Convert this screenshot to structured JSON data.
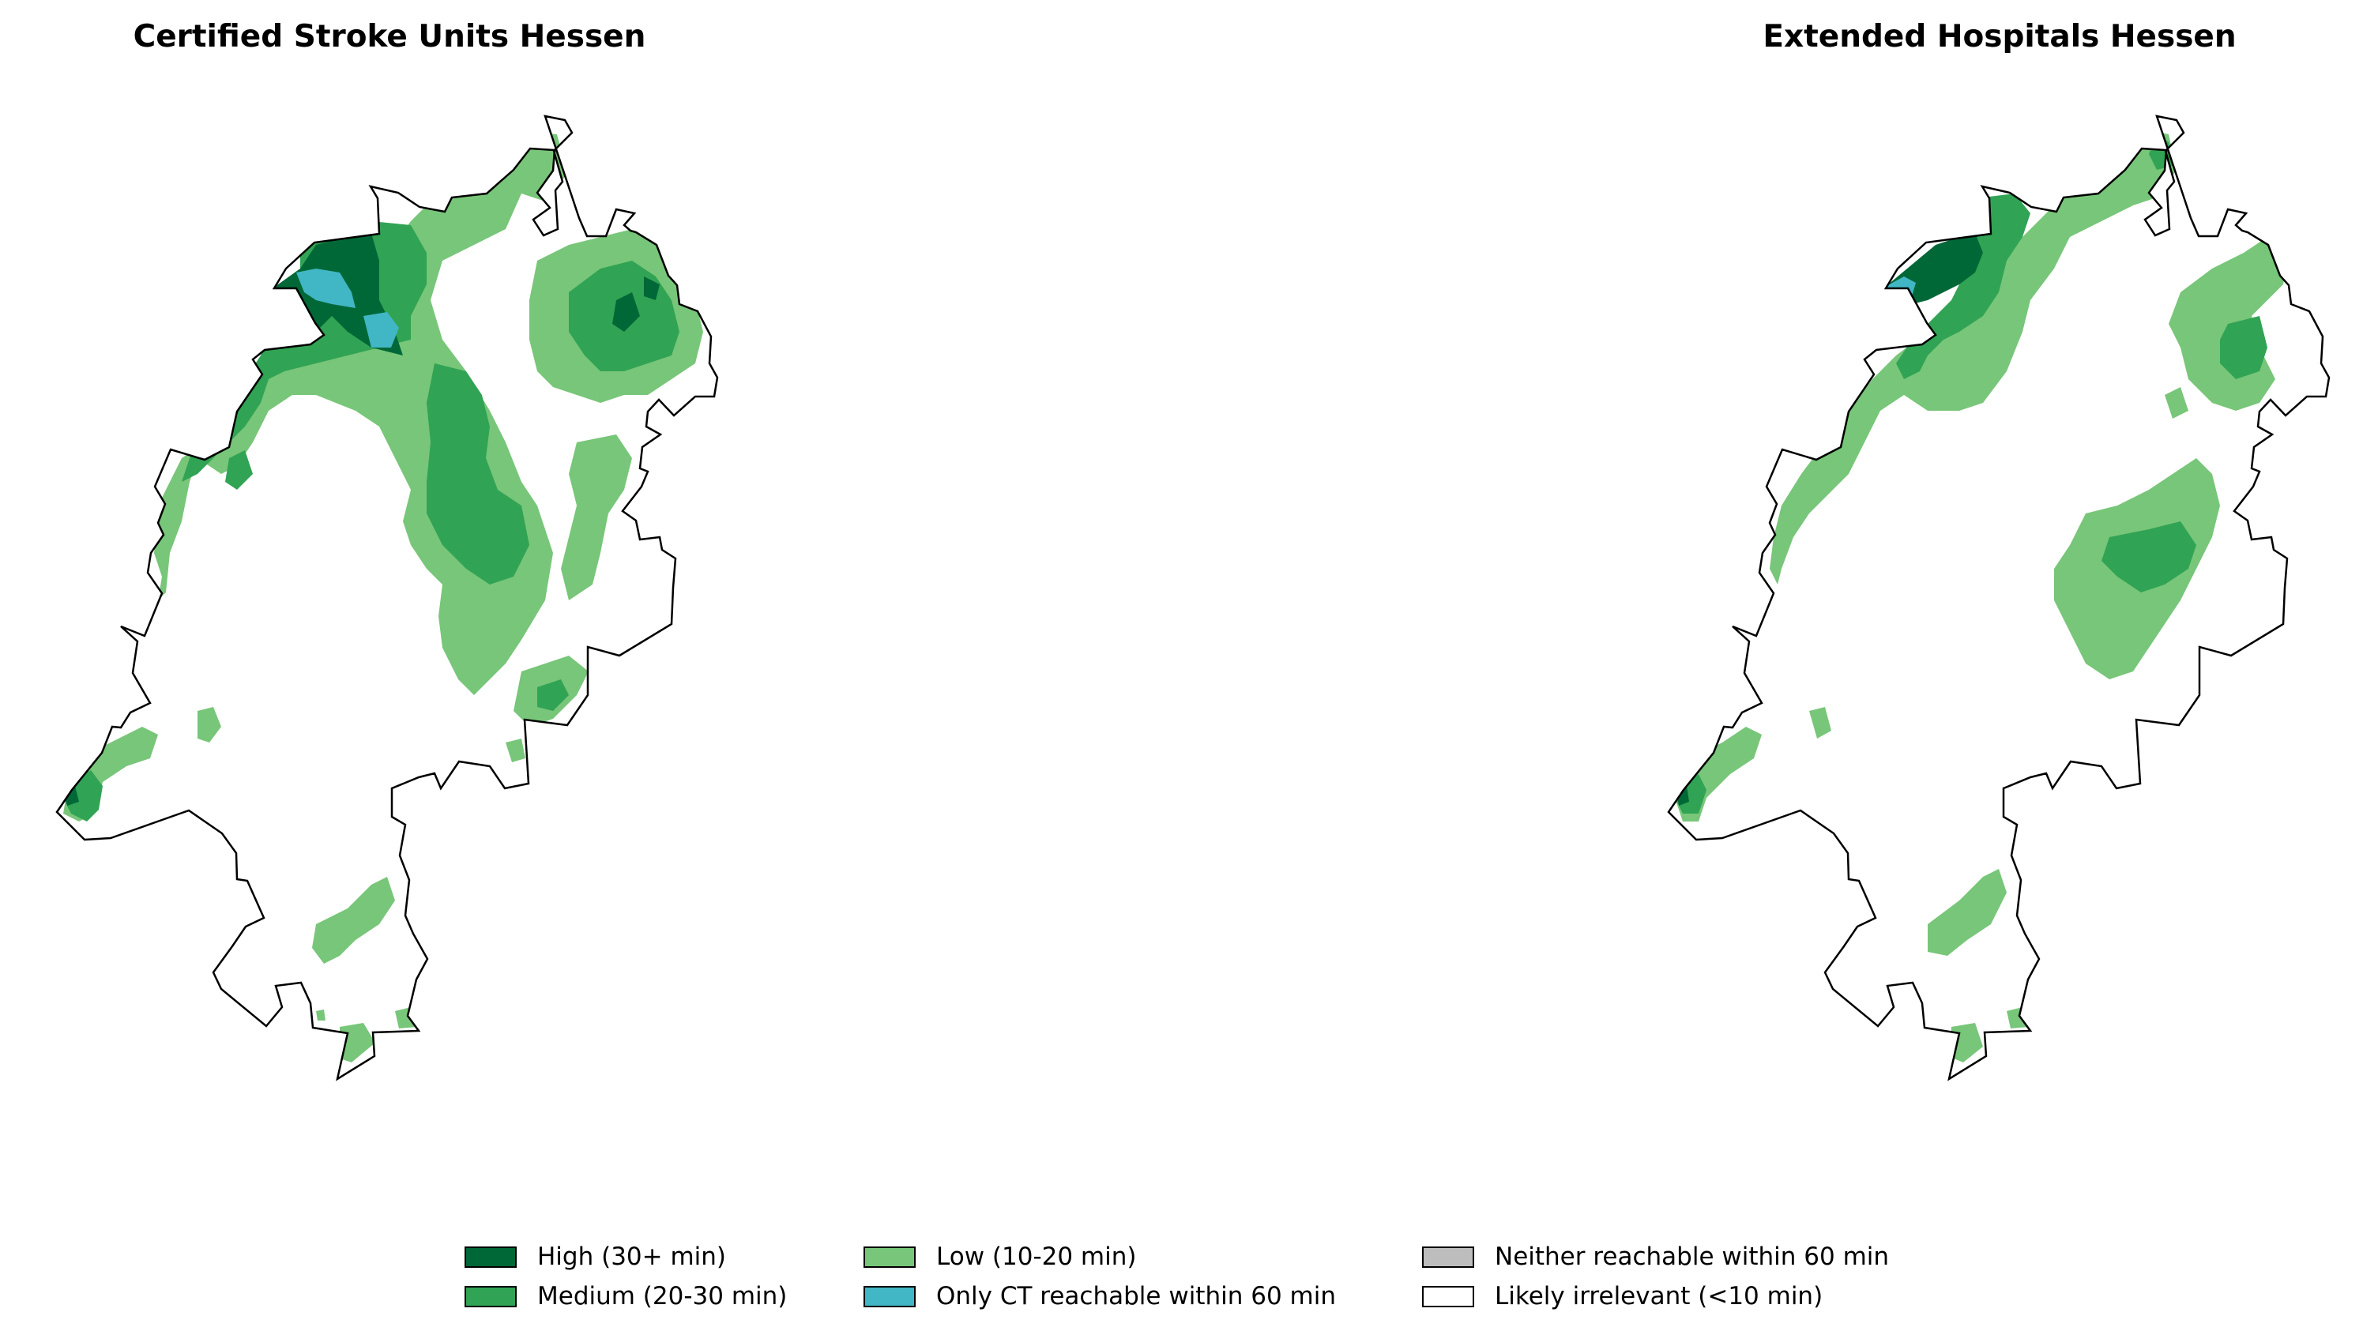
{
  "maps": {
    "left": {
      "title": "Certified Stroke Units Hessen"
    },
    "right": {
      "title": "Extended Hospitals Hessen"
    }
  },
  "legend": {
    "items": [
      {
        "label": "High (30+ min)",
        "color": "#006837"
      },
      {
        "label": "Medium (20-30 min)",
        "color": "#31a354"
      },
      {
        "label": "Low (10-20 min)",
        "color": "#78c679"
      },
      {
        "label": "Only CT reachable within 60 min",
        "color": "#41b6c4"
      },
      {
        "label": "Neither reachable within 60 min",
        "color": "#bdbdbd"
      },
      {
        "label": "Likely irrelevant (<10 min)",
        "color": "#ffffff"
      }
    ]
  }
}
